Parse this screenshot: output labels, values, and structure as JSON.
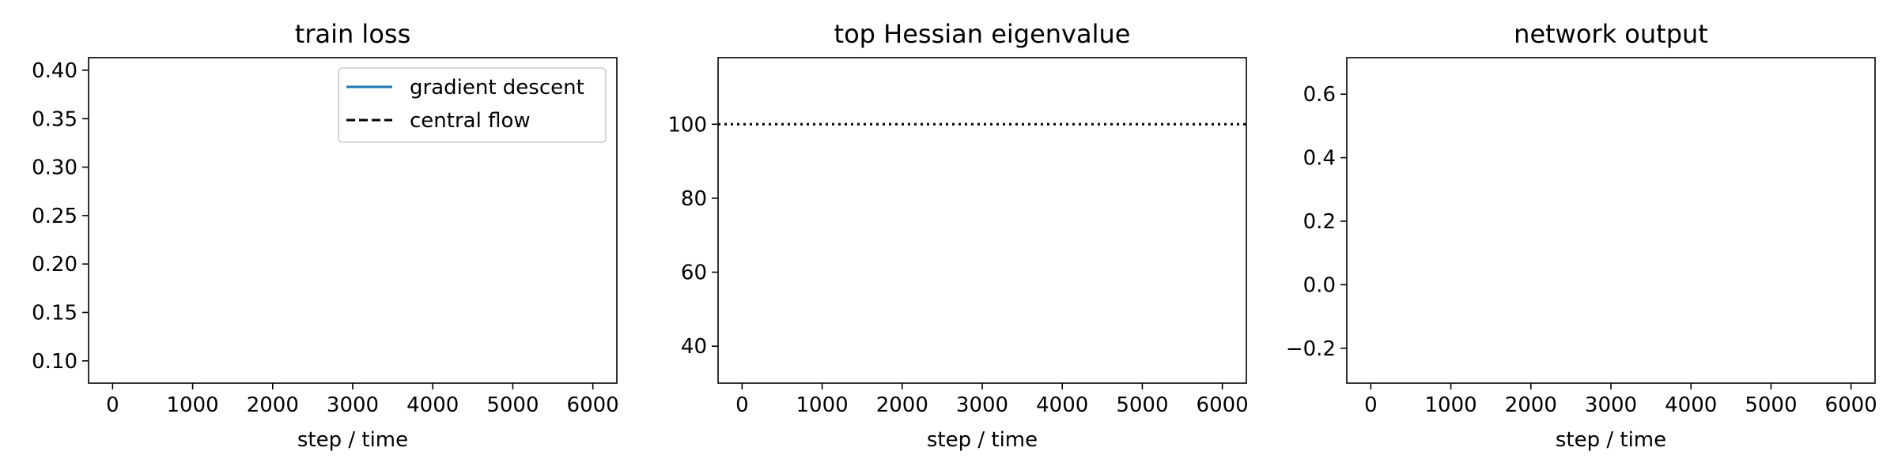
{
  "chart_data": [
    {
      "type": "line",
      "title": "train loss",
      "xlabel": "step / time",
      "ylabel": "",
      "xlim": [
        -300,
        6300
      ],
      "ylim": [
        0.077,
        0.413
      ],
      "xticks": [
        0,
        1000,
        2000,
        3000,
        4000,
        5000,
        6000
      ],
      "xtick_labels": [
        "0",
        "1000",
        "2000",
        "3000",
        "4000",
        "5000",
        "6000"
      ],
      "yticks": [
        0.1,
        0.15,
        0.2,
        0.25,
        0.3,
        0.35,
        0.4
      ],
      "ytick_labels": [
        "0.10",
        "0.15",
        "0.20",
        "0.25",
        "0.30",
        "0.35",
        "0.40"
      ],
      "grid": false,
      "legend": {
        "placement": "top-right",
        "entries": [
          {
            "label": "gradient descent",
            "color": "#1f77b4",
            "style": "solid"
          },
          {
            "label": "central flow",
            "color": "#000000",
            "style": "dashed"
          }
        ]
      },
      "series": [
        {
          "name": "gradient descent",
          "x": [],
          "y": []
        },
        {
          "name": "central flow",
          "x": [],
          "y": []
        }
      ],
      "reference_lines": []
    },
    {
      "type": "line",
      "title": "top Hessian eigenvalue",
      "xlabel": "step / time",
      "ylabel": "",
      "xlim": [
        -300,
        6300
      ],
      "ylim": [
        30,
        118
      ],
      "xticks": [
        0,
        1000,
        2000,
        3000,
        4000,
        5000,
        6000
      ],
      "xtick_labels": [
        "0",
        "1000",
        "2000",
        "3000",
        "4000",
        "5000",
        "6000"
      ],
      "yticks": [
        40,
        60,
        80,
        100
      ],
      "ytick_labels": [
        "40",
        "60",
        "80",
        "100"
      ],
      "grid": false,
      "series": [],
      "reference_lines": [
        {
          "orientation": "horizontal",
          "value": 100,
          "color": "#000000",
          "style": "dotted"
        }
      ]
    },
    {
      "type": "line",
      "title": "network output",
      "xlabel": "step / time",
      "ylabel": "",
      "xlim": [
        -300,
        6300
      ],
      "ylim": [
        -0.31,
        0.715
      ],
      "xticks": [
        0,
        1000,
        2000,
        3000,
        4000,
        5000,
        6000
      ],
      "xtick_labels": [
        "0",
        "1000",
        "2000",
        "3000",
        "4000",
        "5000",
        "6000"
      ],
      "yticks": [
        -0.2,
        0.0,
        0.2,
        0.4,
        0.6
      ],
      "ytick_labels": [
        "−0.2",
        "0.0",
        "0.2",
        "0.4",
        "0.6"
      ],
      "grid": false,
      "series": [],
      "reference_lines": []
    }
  ]
}
